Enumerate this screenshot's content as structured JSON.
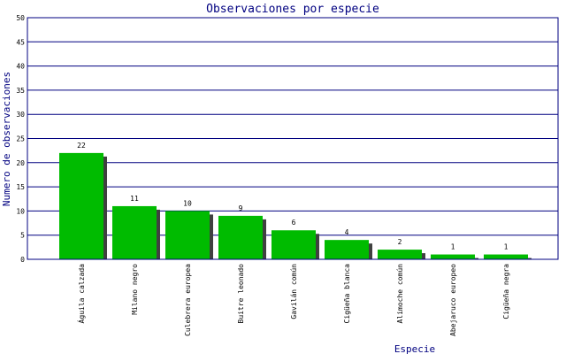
{
  "colors": {
    "background": "#ffffff",
    "bar": "#00bb00",
    "bar_shadow": "#404040",
    "gridline": "#000080",
    "axis": "#000080",
    "title_text": "#000080"
  },
  "chart_data": {
    "type": "bar",
    "title": "Observaciones por especie",
    "xlabel": "Especie",
    "ylabel": "Numero de observaciones",
    "ylim": [
      0,
      50
    ],
    "yticks": [
      0,
      5,
      10,
      15,
      20,
      25,
      30,
      35,
      40,
      45,
      50
    ],
    "grid": true,
    "legend": "none",
    "categories": [
      "Águila calzada",
      "Milano negro",
      "Culebrera europea",
      "Buitre leonado",
      "Gavilán común",
      "Cigüeña blanca",
      "Alimoche común",
      "Abejaruco europeo",
      "Cigüeña negra"
    ],
    "values": [
      22,
      11,
      10,
      9,
      6,
      4,
      2,
      1,
      1
    ]
  }
}
